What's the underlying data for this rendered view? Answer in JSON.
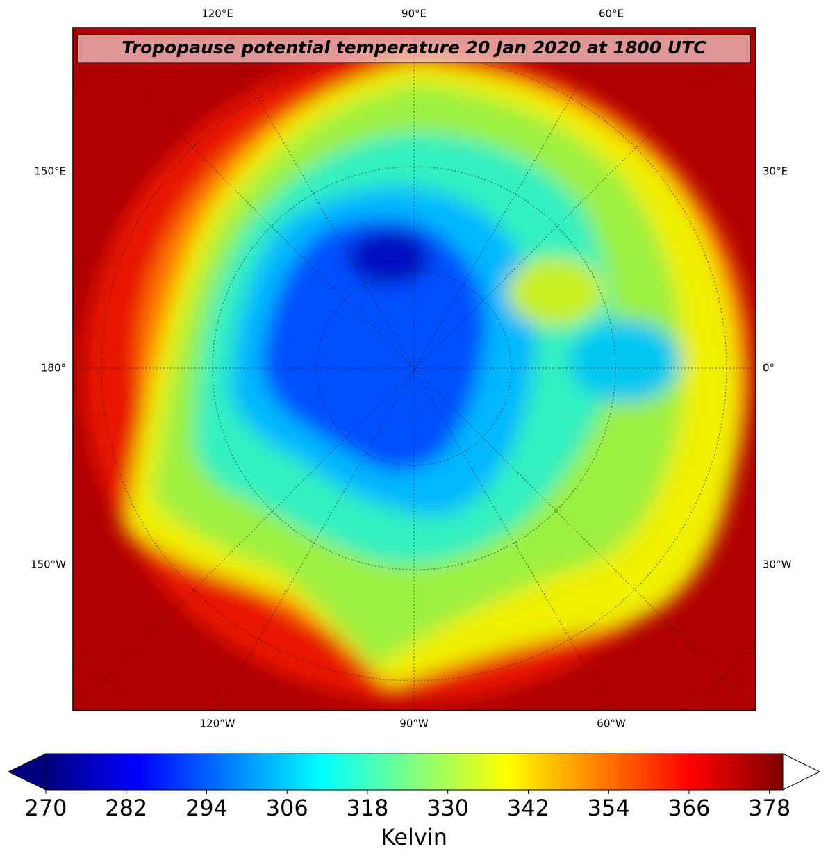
{
  "map": {
    "title": "Tropopause potential temperature 20 Jan 2020 at 1800 UTC",
    "top_labels": [
      "120°E",
      "90°E",
      "60°E"
    ],
    "bottom_labels": [
      "120°W",
      "90°W",
      "60°W"
    ],
    "left_labels": [
      "150°E",
      "180°",
      "150°W"
    ],
    "right_labels": [
      "30°E",
      "0°",
      "30°W"
    ]
  },
  "colorbar": {
    "label": "Kelvin",
    "colormap": "jet",
    "lim": [
      270,
      380
    ],
    "ticks": [
      270,
      282,
      294,
      306,
      318,
      330,
      342,
      354,
      366,
      378
    ]
  }
}
